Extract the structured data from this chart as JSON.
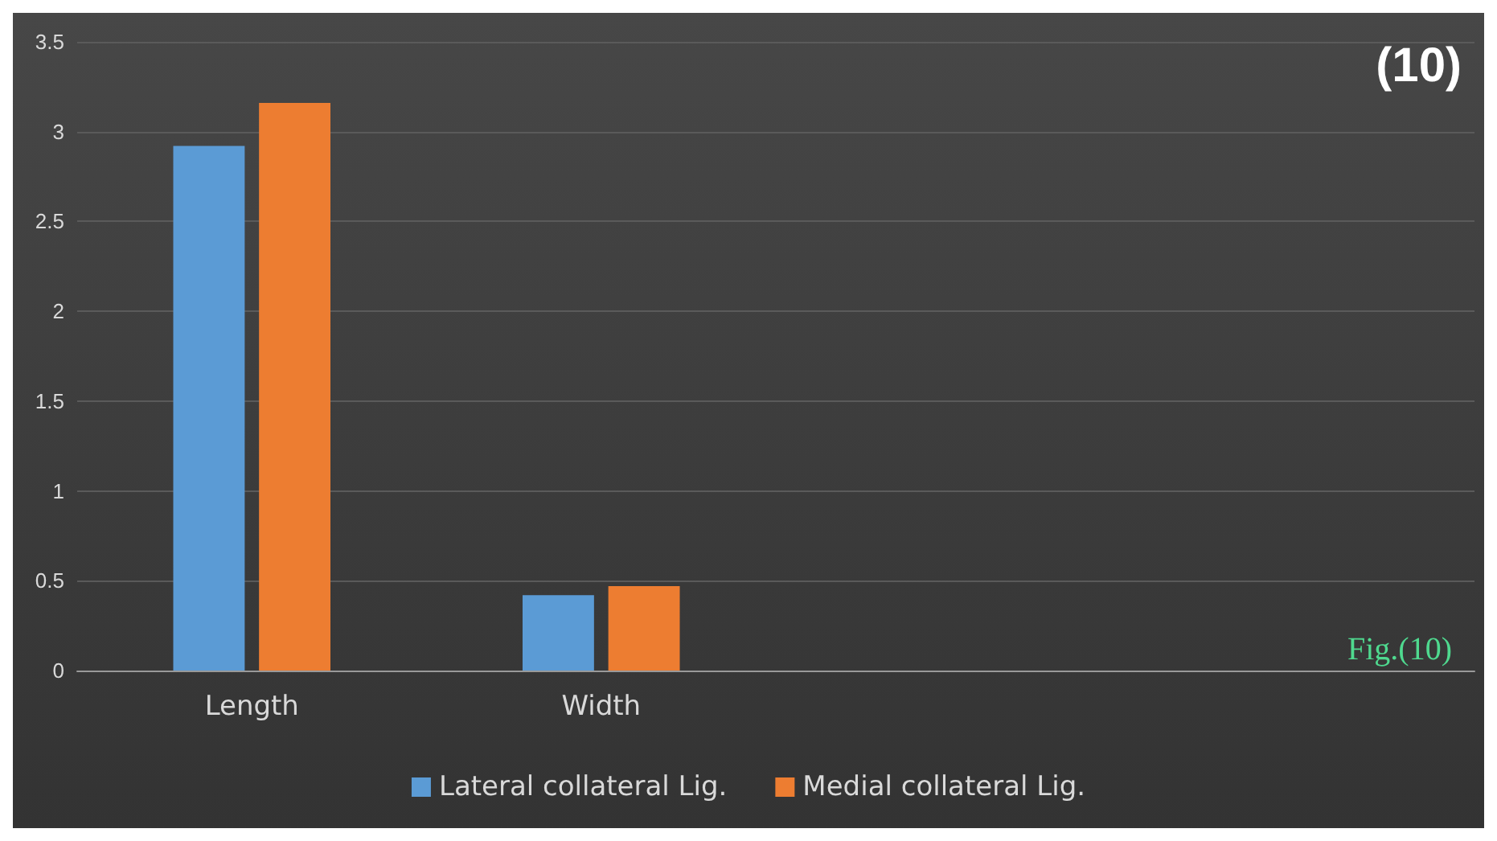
{
  "chart_data": {
    "type": "bar",
    "categories": [
      "Length",
      "Width",
      null,
      null
    ],
    "series": [
      {
        "name": "Lateral collateral Lig.",
        "color": "#5b9bd5",
        "values": [
          2.92,
          0.42,
          null,
          null
        ]
      },
      {
        "name": "Medial collateral Lig.",
        "color": "#ed7d31",
        "values": [
          3.16,
          0.47,
          null,
          null
        ]
      }
    ],
    "ylim": [
      0,
      3.5
    ],
    "yticks": [
      0,
      0.5,
      1,
      1.5,
      2,
      2.5,
      3,
      3.5
    ],
    "grid": "y",
    "legend": "bottom",
    "annotations": [
      "(10)",
      "Fig.(10)"
    ]
  }
}
